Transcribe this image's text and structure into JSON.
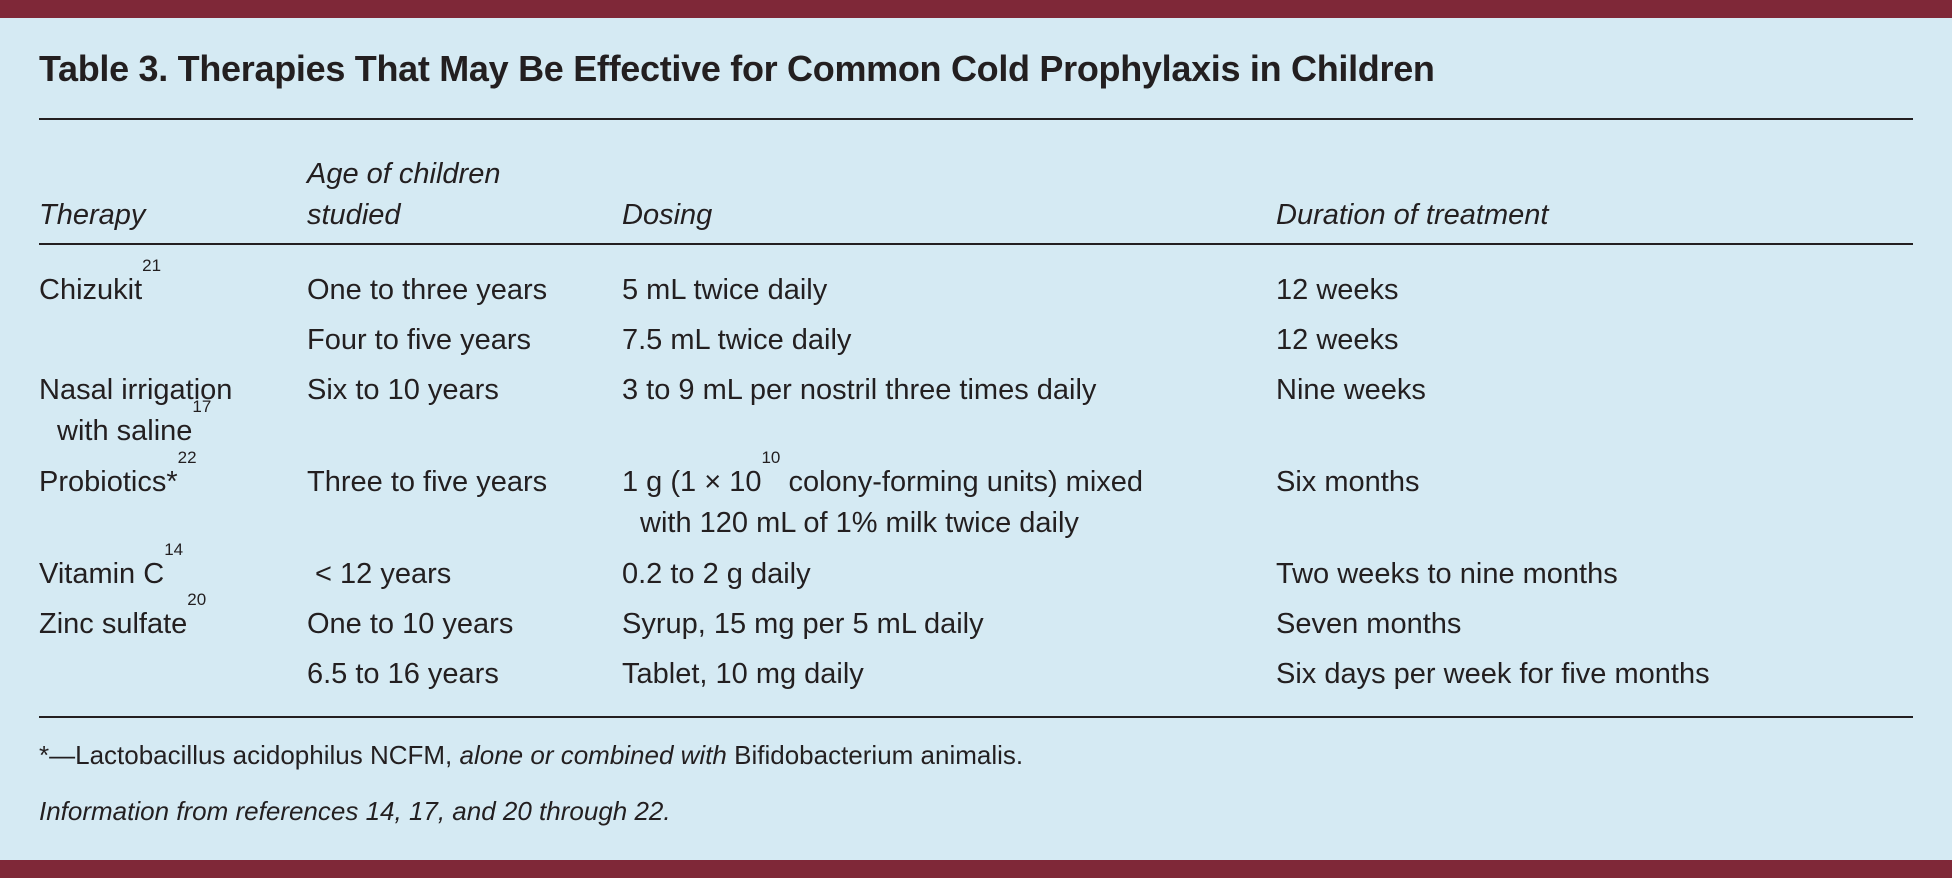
{
  "title": "Table 3. Therapies That May Be Effective for Common Cold Prophylaxis in Children",
  "headers": {
    "therapy": "Therapy",
    "age_line1": "Age of children",
    "age_line2": "studied",
    "dosing": "Dosing",
    "duration": "Duration of treatment"
  },
  "rows": [
    {
      "therapy": "Chizukit",
      "ref": "21",
      "age": "One to three years",
      "dosing": "5 mL twice daily",
      "duration": "12 weeks"
    },
    {
      "age": "Four to five years",
      "dosing": "7.5 mL twice daily",
      "duration": "12 weeks"
    },
    {
      "therapy_line1": "Nasal irrigation",
      "therapy_line2": "with saline",
      "ref": "17",
      "age": "Six to 10 years",
      "dosing": "3 to 9 mL per nostril three times daily",
      "duration": "Nine weeks"
    },
    {
      "therapy": "Probiotics*",
      "ref": "22",
      "age": "Three to five years",
      "dosing_pre": "1 g (1 × 10",
      "dosing_exp": "10",
      "dosing_post": " colony-forming units) mixed",
      "dosing_line2": "with 120 mL of 1% milk twice daily",
      "duration": "Six months"
    },
    {
      "therapy": "Vitamin C",
      "ref": "14",
      "age": " < 12 years",
      "dosing": "0.2 to 2 g daily",
      "duration": "Two weeks to nine months"
    },
    {
      "therapy": "Zinc sulfate",
      "ref": "20",
      "age": "One to 10 years",
      "dosing": "Syrup, 15 mg per 5 mL daily",
      "duration": "Seven months"
    },
    {
      "age": "6.5 to 16 years",
      "dosing": "Tablet, 10 mg daily",
      "duration": "Six days per week for five months"
    }
  ],
  "footnote": {
    "a": "*—Lactobacillus acidophilus NCFM, ",
    "b": "alone or combined with",
    "c": " Bifidobacterium animalis."
  },
  "source": "Information from references 14, 17, and 20 through 22.",
  "colors": {
    "bar": "#7f2838",
    "background": "#d5eaf3",
    "text": "#231f20"
  }
}
